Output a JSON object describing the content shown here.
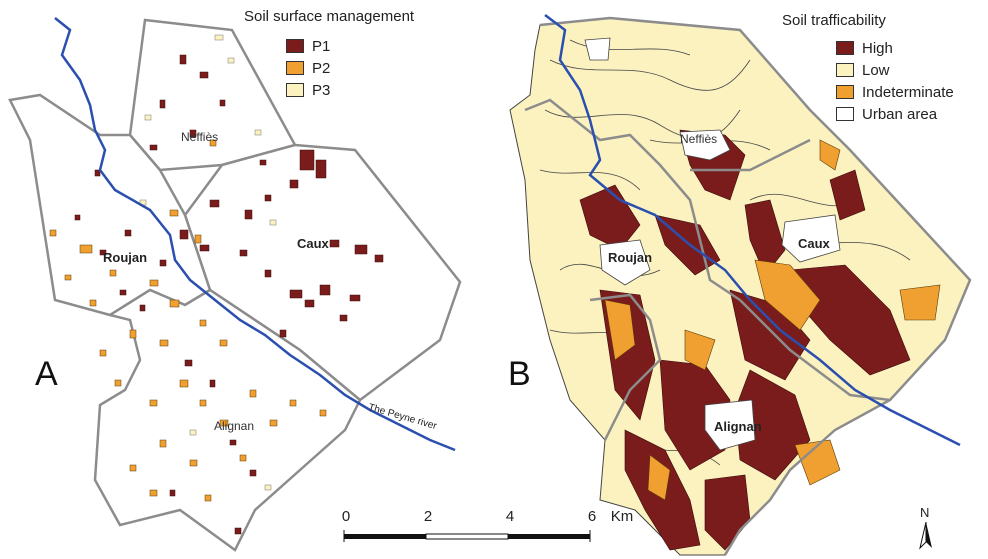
{
  "panel_a": {
    "letter": "A",
    "legend_title": "Soil surface management",
    "legend": [
      {
        "label": "P1",
        "color": "#7b1c1c"
      },
      {
        "label": "P2",
        "color": "#f0a030"
      },
      {
        "label": "P3",
        "color": "#fbf2c0"
      }
    ],
    "towns": [
      "Neffiès",
      "Caux",
      "Roujan",
      "Alignan"
    ],
    "river_label": "The Peyne river"
  },
  "panel_b": {
    "letter": "B",
    "legend_title": "Soil trafficability",
    "legend": [
      {
        "label": "High",
        "color": "#7b1c1c"
      },
      {
        "label": "Low",
        "color": "#fbf2c0"
      },
      {
        "label": "Indeterminate",
        "color": "#f0a030"
      },
      {
        "label": "Urban area",
        "color": "#ffffff"
      }
    ],
    "towns": [
      "Neffiès",
      "Caux",
      "Roujan",
      "Alignan"
    ]
  },
  "scale_bar": {
    "ticks": [
      "0",
      "2",
      "4",
      "6"
    ],
    "unit": "Km"
  },
  "north_arrow": {
    "label": "N"
  },
  "colors": {
    "river": "#2b4fae",
    "boundary": "#8c8c8c",
    "p1": "#7b1c1c",
    "p2": "#f0a030",
    "p3": "#fbf2c0"
  }
}
